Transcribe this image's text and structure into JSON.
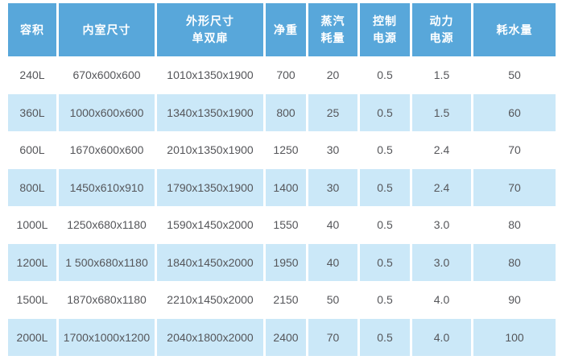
{
  "table": {
    "accent_color": "#58A7DA",
    "alt_row_color": "#CBE8F8",
    "header_text_color": "#FFFFFF",
    "body_text_color": "#55565A",
    "columns": [
      {
        "lines": [
          "容积"
        ]
      },
      {
        "lines": [
          "内室尺寸"
        ]
      },
      {
        "lines": [
          "外形尺寸",
          "单双扉"
        ]
      },
      {
        "lines": [
          "净重"
        ]
      },
      {
        "lines": [
          "蒸汽",
          "耗量"
        ]
      },
      {
        "lines": [
          "控制",
          "电源"
        ]
      },
      {
        "lines": [
          "动力",
          "电源"
        ]
      },
      {
        "lines": [
          "耗水量"
        ]
      }
    ],
    "rows": [
      [
        "240L",
        "670x600x600",
        "1010x1350x1900",
        "700",
        "20",
        "0.5",
        "1.5",
        "50"
      ],
      [
        "360L",
        "1000x600x600",
        "1340x1350x1900",
        "800",
        "25",
        "0.5",
        "1.5",
        "60"
      ],
      [
        "600L",
        "1670x600x600",
        "2010x1350x1900",
        "1250",
        "30",
        "0.5",
        "2.4",
        "70"
      ],
      [
        "800L",
        "1450x610x910",
        "1790x1350x1900",
        "1400",
        "30",
        "0.5",
        "2.4",
        "70"
      ],
      [
        "1000L",
        "1250x680x1180",
        "1590x1450x2000",
        "1550",
        "40",
        "0.5",
        "3.0",
        "80"
      ],
      [
        "1200L",
        "1 500x680x1180",
        "1840x1450x2000",
        "1950",
        "40",
        "0.5",
        "3.0",
        "80"
      ],
      [
        "1500L",
        "1870x680x1180",
        "2210x1450x2000",
        "2150",
        "50",
        "0.5",
        "4.0",
        "90"
      ],
      [
        "2000L",
        "1700x1000x1200",
        "2040x1800x2000",
        "2400",
        "70",
        "0.5",
        "4.0",
        "100"
      ]
    ]
  },
  "chart_data": {
    "type": "table",
    "columns": [
      "容积",
      "内室尺寸",
      "外形尺寸 单双扉",
      "净重",
      "蒸汽耗量",
      "控制电源",
      "动力电源",
      "耗水量"
    ],
    "rows": [
      [
        "240L",
        "670x600x600",
        "1010x1350x1900",
        700,
        20,
        0.5,
        1.5,
        50
      ],
      [
        "360L",
        "1000x600x600",
        "1340x1350x1900",
        800,
        25,
        0.5,
        1.5,
        60
      ],
      [
        "600L",
        "1670x600x600",
        "2010x1350x1900",
        1250,
        30,
        0.5,
        2.4,
        70
      ],
      [
        "800L",
        "1450x610x910",
        "1790x1350x1900",
        1400,
        30,
        0.5,
        2.4,
        70
      ],
      [
        "1000L",
        "1250x680x1180",
        "1590x1450x2000",
        1550,
        40,
        0.5,
        3.0,
        80
      ],
      [
        "1200L",
        "1 500x680x1180",
        "1840x1450x2000",
        1950,
        40,
        0.5,
        3.0,
        80
      ],
      [
        "1500L",
        "1870x680x1180",
        "2210x1450x2000",
        2150,
        50,
        0.5,
        4.0,
        90
      ],
      [
        "2000L",
        "1700x1000x1200",
        "2040x1800x2000",
        2400,
        70,
        0.5,
        4.0,
        100
      ]
    ]
  }
}
